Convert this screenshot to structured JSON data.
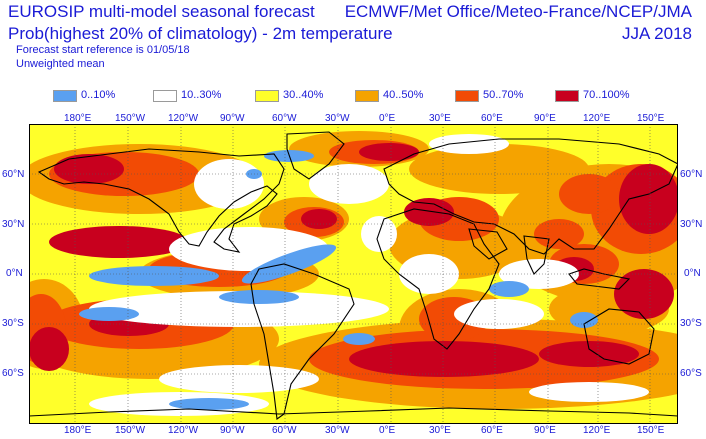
{
  "header": {
    "title_line1": "EUROSIP multi-model seasonal forecast",
    "title_line2": "Prob(highest 20% of climatology) - 2m temperature",
    "subtitle_line1": "Forecast start reference is 01/05/18",
    "subtitle_line2": "Unweighted mean",
    "centres": "ECMWF/Met Office/Meteo-France/NCEP/JMA",
    "season": "JJA 2018"
  },
  "legend": [
    {
      "label": "0..10%",
      "color": "#5aa0f0"
    },
    {
      "label": "10..30%",
      "color": "#ffffff"
    },
    {
      "label": "30..40%",
      "color": "#ffff2a"
    },
    {
      "label": "40..50%",
      "color": "#f5a300"
    },
    {
      "label": "50..70%",
      "color": "#f24b05"
    },
    {
      "label": "70..100%",
      "color": "#c8001e"
    }
  ],
  "axes": {
    "lon_labels": [
      "180°E",
      "150°W",
      "120°W",
      "90°W",
      "60°W",
      "30°W",
      "0°E",
      "30°E",
      "60°E",
      "90°E",
      "120°E",
      "150°E"
    ],
    "lat_labels": [
      "60°N",
      "30°N",
      "0°N",
      "30°S",
      "60°S"
    ]
  },
  "map_colors": {
    "background": "#ffff2a",
    "p0_10": "#5aa0f0",
    "p10_30": "#ffffff",
    "p30_40": "#ffff2a",
    "p40_50": "#f5a300",
    "p50_70": "#f24b05",
    "p70_100": "#c8001e",
    "coast": "#000000",
    "grid": "#555555"
  }
}
